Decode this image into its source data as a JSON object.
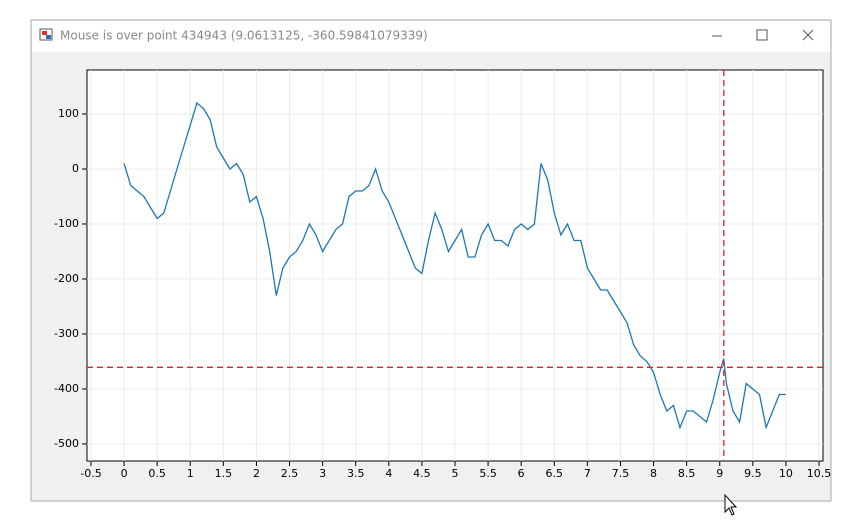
{
  "window": {
    "title": "Mouse is over point 434943 (9.0613125, -360.59841079339)"
  },
  "chart_data": {
    "type": "line",
    "x": [
      0,
      0.1,
      0.2,
      0.3,
      0.4,
      0.5,
      0.6,
      0.7,
      0.8,
      0.9,
      1,
      1.1,
      1.2,
      1.3,
      1.4,
      1.5,
      1.6,
      1.7,
      1.8,
      1.9,
      2,
      2.1,
      2.2,
      2.3,
      2.4,
      2.5,
      2.6,
      2.7,
      2.8,
      2.9,
      3,
      3.1,
      3.2,
      3.3,
      3.4,
      3.5,
      3.6,
      3.7,
      3.8,
      3.9,
      4,
      4.1,
      4.2,
      4.3,
      4.4,
      4.5,
      4.6,
      4.7,
      4.8,
      4.9,
      5,
      5.1,
      5.2,
      5.3,
      5.4,
      5.5,
      5.6,
      5.7,
      5.8,
      5.9,
      6,
      6.1,
      6.2,
      6.3,
      6.4,
      6.5,
      6.6,
      6.7,
      6.8,
      6.9,
      7,
      7.1,
      7.2,
      7.3,
      7.4,
      7.5,
      7.6,
      7.7,
      7.8,
      7.9,
      8,
      8.1,
      8.2,
      8.3,
      8.4,
      8.5,
      8.6,
      8.7,
      8.8,
      8.9,
      9,
      9.06,
      9.1,
      9.2,
      9.3,
      9.4,
      9.5,
      9.6,
      9.7,
      9.8,
      9.9,
      10
    ],
    "series": [
      {
        "color": "#1f77b4",
        "values": [
          10,
          -30,
          -40,
          -50,
          -70,
          -90,
          -80,
          -40,
          0,
          40,
          80,
          120,
          110,
          90,
          40,
          20,
          0,
          10,
          -10,
          -60,
          -50,
          -90,
          -150,
          -230,
          -180,
          -160,
          -150,
          -130,
          -100,
          -120,
          -150,
          -130,
          -110,
          -100,
          -50,
          -40,
          -40,
          -30,
          0,
          -40,
          -60,
          -90,
          -120,
          -150,
          -180,
          -190,
          -130,
          -80,
          -110,
          -150,
          -130,
          -110,
          -160,
          -160,
          -120,
          -100,
          -130,
          -130,
          -140,
          -110,
          -100,
          -110,
          -100,
          10,
          -20,
          -80,
          -120,
          -100,
          -130,
          -130,
          -180,
          -200,
          -220,
          -220,
          -240,
          -260,
          -280,
          -320,
          -340,
          -350,
          -370,
          -410,
          -440,
          -430,
          -470,
          -440,
          -440,
          -450,
          -460,
          -420,
          -370,
          -345,
          -390,
          -440,
          -460,
          -390,
          -400,
          -410,
          -470,
          -440,
          -410,
          -410
        ]
      }
    ],
    "xlim": [
      -0.56,
      10.56
    ],
    "ylim": [
      -531,
      180
    ],
    "xticks": [
      -0.5,
      0,
      0.5,
      1,
      1.5,
      2,
      2.5,
      3,
      3.5,
      4,
      4.5,
      5,
      5.5,
      6,
      6.5,
      7,
      7.5,
      8,
      8.5,
      9,
      9.5,
      10,
      10.5
    ],
    "yticks": [
      -500,
      -400,
      -300,
      -200,
      -100,
      0,
      100
    ],
    "grid": true,
    "crosshair": {
      "x": 9.0613125,
      "y": -360.59841079339,
      "color": "#d62728"
    }
  }
}
